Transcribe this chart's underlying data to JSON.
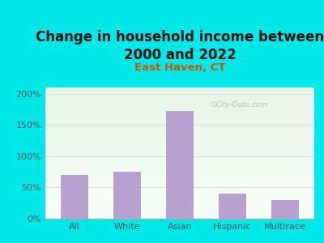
{
  "title": "Change in household income between\n2000 and 2022",
  "subtitle": "East Haven, CT",
  "categories": [
    "All",
    "White",
    "Asian",
    "Hispanic",
    "Multirace"
  ],
  "values": [
    70,
    75,
    172,
    40,
    30
  ],
  "bar_color": "#b8a0d0",
  "title_fontsize": 12,
  "subtitle_fontsize": 9.5,
  "subtitle_color": "#cc5500",
  "title_color": "#111111",
  "bg_color": "#00e8e8",
  "plot_bg_top": "#e8f5e8",
  "plot_bg_bottom": "#f8fff8",
  "yticks": [
    0,
    50,
    100,
    150,
    200
  ],
  "ylim": [
    0,
    210
  ],
  "watermark": "City-Data.com",
  "tick_color": "#555555",
  "tick_fontsize": 8,
  "grid_color": "#dddddd"
}
